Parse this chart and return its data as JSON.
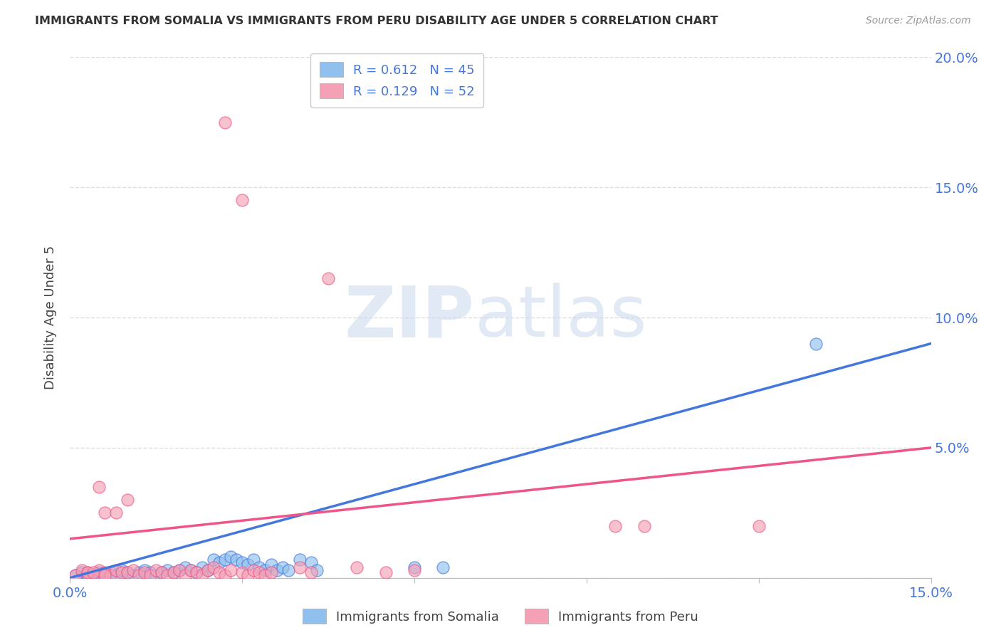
{
  "title": "IMMIGRANTS FROM SOMALIA VS IMMIGRANTS FROM PERU DISABILITY AGE UNDER 5 CORRELATION CHART",
  "source": "Source: ZipAtlas.com",
  "ylabel": "Disability Age Under 5",
  "xlabel_somalia": "Immigrants from Somalia",
  "xlabel_peru": "Immigrants from Peru",
  "xlim": [
    0.0,
    0.15
  ],
  "ylim": [
    0.0,
    0.2
  ],
  "somalia_color": "#90C0EE",
  "peru_color": "#F4A0B5",
  "somalia_line_color": "#4477DD",
  "peru_line_color": "#EE5588",
  "legend_R_somalia": "0.612",
  "legend_N_somalia": "45",
  "legend_R_peru": "0.129",
  "legend_N_peru": "52",
  "somalia_points": [
    [
      0.001,
      0.001
    ],
    [
      0.002,
      0.002
    ],
    [
      0.003,
      0.001
    ],
    [
      0.004,
      0.001
    ],
    [
      0.005,
      0.002
    ],
    [
      0.006,
      0.001
    ],
    [
      0.007,
      0.002
    ],
    [
      0.008,
      0.001
    ],
    [
      0.009,
      0.003
    ],
    [
      0.01,
      0.002
    ],
    [
      0.011,
      0.001
    ],
    [
      0.012,
      0.002
    ],
    [
      0.013,
      0.003
    ],
    [
      0.014,
      0.002
    ],
    [
      0.015,
      0.001
    ],
    [
      0.016,
      0.002
    ],
    [
      0.017,
      0.003
    ],
    [
      0.018,
      0.002
    ],
    [
      0.019,
      0.003
    ],
    [
      0.02,
      0.004
    ],
    [
      0.021,
      0.003
    ],
    [
      0.022,
      0.002
    ],
    [
      0.023,
      0.004
    ],
    [
      0.024,
      0.003
    ],
    [
      0.025,
      0.007
    ],
    [
      0.026,
      0.006
    ],
    [
      0.027,
      0.007
    ],
    [
      0.028,
      0.008
    ],
    [
      0.029,
      0.007
    ],
    [
      0.03,
      0.006
    ],
    [
      0.031,
      0.005
    ],
    [
      0.032,
      0.007
    ],
    [
      0.033,
      0.004
    ],
    [
      0.034,
      0.003
    ],
    [
      0.035,
      0.005
    ],
    [
      0.036,
      0.003
    ],
    [
      0.037,
      0.004
    ],
    [
      0.038,
      0.003
    ],
    [
      0.04,
      0.007
    ],
    [
      0.042,
      0.006
    ],
    [
      0.043,
      0.003
    ],
    [
      0.06,
      0.004
    ],
    [
      0.065,
      0.004
    ],
    [
      0.13,
      0.09
    ],
    [
      0.003,
      0.001
    ]
  ],
  "peru_points": [
    [
      0.001,
      0.001
    ],
    [
      0.002,
      0.003
    ],
    [
      0.003,
      0.002
    ],
    [
      0.004,
      0.001
    ],
    [
      0.005,
      0.003
    ],
    [
      0.006,
      0.002
    ],
    [
      0.007,
      0.001
    ],
    [
      0.008,
      0.003
    ],
    [
      0.009,
      0.002
    ],
    [
      0.01,
      0.002
    ],
    [
      0.011,
      0.003
    ],
    [
      0.012,
      0.001
    ],
    [
      0.013,
      0.002
    ],
    [
      0.014,
      0.001
    ],
    [
      0.015,
      0.003
    ],
    [
      0.016,
      0.002
    ],
    [
      0.017,
      0.001
    ],
    [
      0.018,
      0.002
    ],
    [
      0.019,
      0.003
    ],
    [
      0.02,
      0.001
    ],
    [
      0.021,
      0.003
    ],
    [
      0.022,
      0.002
    ],
    [
      0.023,
      0.001
    ],
    [
      0.024,
      0.003
    ],
    [
      0.025,
      0.004
    ],
    [
      0.026,
      0.002
    ],
    [
      0.027,
      0.001
    ],
    [
      0.028,
      0.003
    ],
    [
      0.03,
      0.002
    ],
    [
      0.031,
      0.001
    ],
    [
      0.032,
      0.003
    ],
    [
      0.033,
      0.002
    ],
    [
      0.034,
      0.001
    ],
    [
      0.035,
      0.002
    ],
    [
      0.04,
      0.004
    ],
    [
      0.042,
      0.002
    ],
    [
      0.05,
      0.004
    ],
    [
      0.055,
      0.002
    ],
    [
      0.06,
      0.003
    ],
    [
      0.095,
      0.02
    ],
    [
      0.1,
      0.02
    ],
    [
      0.12,
      0.02
    ],
    [
      0.027,
      0.175
    ],
    [
      0.03,
      0.145
    ],
    [
      0.045,
      0.115
    ],
    [
      0.005,
      0.035
    ],
    [
      0.006,
      0.025
    ],
    [
      0.008,
      0.025
    ],
    [
      0.01,
      0.03
    ],
    [
      0.003,
      0.002
    ],
    [
      0.004,
      0.002
    ],
    [
      0.006,
      0.001
    ]
  ],
  "somalia_line": [
    0.0,
    0.0,
    0.15,
    0.09
  ],
  "peru_line": [
    0.0,
    0.015,
    0.15,
    0.05
  ],
  "watermark_zip": "ZIP",
  "watermark_atlas": "atlas",
  "background_color": "#FFFFFF",
  "grid_color": "#DDDDDD",
  "tick_color": "#4477DD",
  "text_color": "#444444"
}
